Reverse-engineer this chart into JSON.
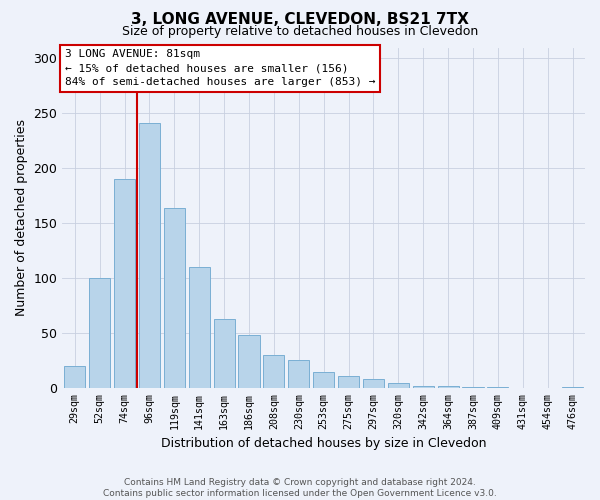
{
  "title": "3, LONG AVENUE, CLEVEDON, BS21 7TX",
  "subtitle": "Size of property relative to detached houses in Clevedon",
  "xlabel": "Distribution of detached houses by size in Clevedon",
  "ylabel": "Number of detached properties",
  "bar_labels": [
    "29sqm",
    "52sqm",
    "74sqm",
    "96sqm",
    "119sqm",
    "141sqm",
    "163sqm",
    "186sqm",
    "208sqm",
    "230sqm",
    "253sqm",
    "275sqm",
    "297sqm",
    "320sqm",
    "342sqm",
    "364sqm",
    "387sqm",
    "409sqm",
    "431sqm",
    "454sqm",
    "476sqm"
  ],
  "bar_values": [
    20,
    100,
    190,
    241,
    164,
    110,
    63,
    48,
    30,
    25,
    14,
    11,
    8,
    4,
    2,
    2,
    1,
    1,
    0,
    0,
    1
  ],
  "bar_color": "#b8d4ea",
  "bar_edge_color": "#7aafd4",
  "ylim": [
    0,
    310
  ],
  "yticks": [
    0,
    50,
    100,
    150,
    200,
    250,
    300
  ],
  "vline_x": 2.5,
  "vline_color": "#cc0000",
  "annotation_title": "3 LONG AVENUE: 81sqm",
  "annotation_line1": "← 15% of detached houses are smaller (156)",
  "annotation_line2": "84% of semi-detached houses are larger (853) →",
  "annotation_box_color": "#ffffff",
  "annotation_box_edge": "#cc0000",
  "footer_line1": "Contains HM Land Registry data © Crown copyright and database right 2024.",
  "footer_line2": "Contains public sector information licensed under the Open Government Licence v3.0.",
  "bg_color": "#eef2fa",
  "plot_bg_color": "#eef2fa"
}
